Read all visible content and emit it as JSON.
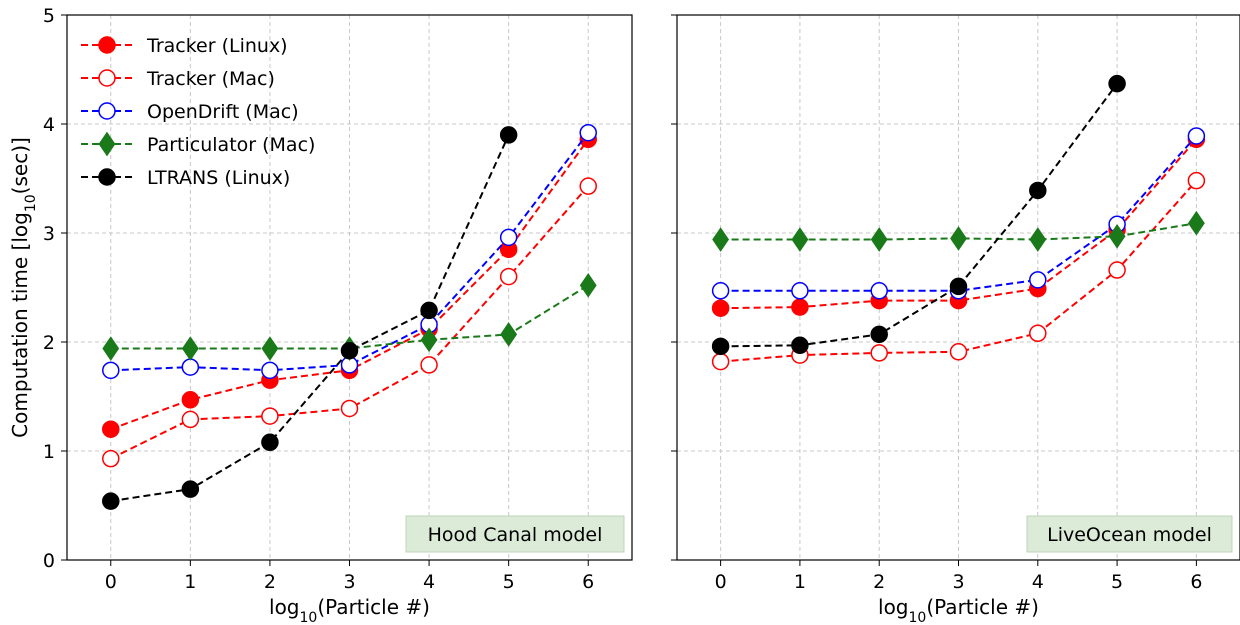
{
  "chart_data": {
    "type": "line",
    "ylabel": "Computation time [log10(sec)]",
    "xlabel": "log10(Particle #)",
    "x": [
      0,
      1,
      2,
      3,
      4,
      5,
      6
    ],
    "xlim": [
      -0.55,
      6.55
    ],
    "ylim": [
      0,
      5
    ],
    "xticks": [
      0,
      1,
      2,
      3,
      4,
      5,
      6
    ],
    "yticks": [
      0,
      1,
      2,
      3,
      4,
      5
    ],
    "grid": true,
    "legend_location": "top-left",
    "series_styles": [
      {
        "name": "Tracker (Linux)",
        "color": "#ff0000",
        "marker": "circle",
        "fill": "filled"
      },
      {
        "name": "Tracker (Mac)",
        "color": "#ff0000",
        "marker": "circle",
        "fill": "open"
      },
      {
        "name": "OpenDrift (Mac)",
        "color": "#0000ff",
        "marker": "circle",
        "fill": "open"
      },
      {
        "name": "Particulator (Mac)",
        "color": "#1a7a1a",
        "marker": "diamond",
        "fill": "filled"
      },
      {
        "name": "LTRANS (Linux)",
        "color": "#000000",
        "marker": "circle",
        "fill": "filled"
      }
    ],
    "panels": [
      {
        "label": "Hood Canal model",
        "series": [
          {
            "name": "Tracker (Linux)",
            "values": [
              1.2,
              1.47,
              1.65,
              1.74,
              2.12,
              2.85,
              3.86
            ]
          },
          {
            "name": "Tracker (Mac)",
            "values": [
              0.93,
              1.29,
              1.32,
              1.39,
              1.79,
              2.6,
              3.43
            ]
          },
          {
            "name": "OpenDrift (Mac)",
            "values": [
              1.74,
              1.77,
              1.74,
              1.79,
              2.16,
              2.96,
              3.92
            ]
          },
          {
            "name": "Particulator (Mac)",
            "values": [
              1.94,
              1.94,
              1.94,
              1.94,
              2.02,
              2.07,
              2.52
            ]
          },
          {
            "name": "LTRANS (Linux)",
            "values": [
              0.54,
              0.65,
              1.08,
              1.92,
              2.29,
              3.9,
              null
            ]
          }
        ]
      },
      {
        "label": "LiveOcean model",
        "series": [
          {
            "name": "Tracker (Linux)",
            "values": [
              2.31,
              2.32,
              2.38,
              2.38,
              2.49,
              3.03,
              3.86
            ]
          },
          {
            "name": "Tracker (Mac)",
            "values": [
              1.82,
              1.88,
              1.9,
              1.91,
              2.08,
              2.66,
              3.48
            ]
          },
          {
            "name": "OpenDrift (Mac)",
            "values": [
              2.47,
              2.47,
              2.47,
              2.47,
              2.57,
              3.08,
              3.89
            ]
          },
          {
            "name": "Particulator (Mac)",
            "values": [
              2.94,
              2.94,
              2.94,
              2.95,
              2.94,
              2.97,
              3.09
            ]
          },
          {
            "name": "LTRANS (Linux)",
            "values": [
              1.96,
              1.97,
              2.07,
              2.51,
              3.39,
              4.37,
              null
            ]
          }
        ]
      }
    ]
  }
}
